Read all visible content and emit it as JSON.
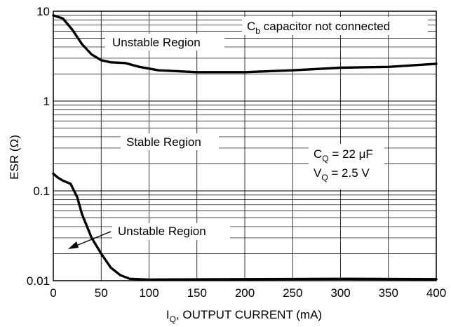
{
  "chart_data": {
    "type": "line",
    "title": "",
    "xlabel": {
      "main": "I",
      "sub": "Q",
      "rest": ", OUTPUT CURRENT (mA)"
    },
    "ylabel": "ESR (Ω)",
    "xlim": [
      0,
      400
    ],
    "ylim": [
      0.01,
      10
    ],
    "yscale": "log",
    "grid": true,
    "x_ticks": [
      0,
      50,
      100,
      150,
      200,
      250,
      300,
      350,
      400
    ],
    "y_ticks": [
      {
        "value": 0.01,
        "label": "0.01"
      },
      {
        "value": 0.1,
        "label": "0.1"
      },
      {
        "value": 1,
        "label": "1"
      },
      {
        "value": 10,
        "label": "10"
      }
    ],
    "series": [
      {
        "role": "upper stability boundary",
        "points": [
          [
            0,
            9
          ],
          [
            10,
            8.3
          ],
          [
            20,
            6.2
          ],
          [
            30,
            4.3
          ],
          [
            40,
            3.3
          ],
          [
            50,
            2.85
          ],
          [
            60,
            2.7
          ],
          [
            75,
            2.65
          ],
          [
            90,
            2.4
          ],
          [
            110,
            2.2
          ],
          [
            150,
            2.1
          ],
          [
            200,
            2.1
          ],
          [
            250,
            2.2
          ],
          [
            300,
            2.35
          ],
          [
            350,
            2.4
          ],
          [
            400,
            2.6
          ]
        ]
      },
      {
        "role": "lower stability boundary",
        "points": [
          [
            0,
            0.155
          ],
          [
            5,
            0.14
          ],
          [
            10,
            0.13
          ],
          [
            18,
            0.12
          ],
          [
            25,
            0.085
          ],
          [
            30,
            0.055
          ],
          [
            40,
            0.03
          ],
          [
            50,
            0.02
          ],
          [
            60,
            0.014
          ],
          [
            70,
            0.0115
          ],
          [
            80,
            0.0105
          ],
          [
            100,
            0.0103
          ],
          [
            200,
            0.0104
          ],
          [
            300,
            0.0105
          ],
          [
            400,
            0.0104
          ]
        ]
      }
    ],
    "annotations": {
      "cb_note": {
        "pre": "C",
        "sub": "b",
        "post": " capacitor not connected"
      },
      "unstable_upper": "Unstable Region",
      "stable": "Stable Region",
      "unstable_lower": "Unstable Region",
      "cq": {
        "pre": "C",
        "sub": "Q",
        "post": " = 22 μF"
      },
      "vq": {
        "pre": "V",
        "sub": "Q",
        "post": " = 2.5 V"
      }
    }
  }
}
